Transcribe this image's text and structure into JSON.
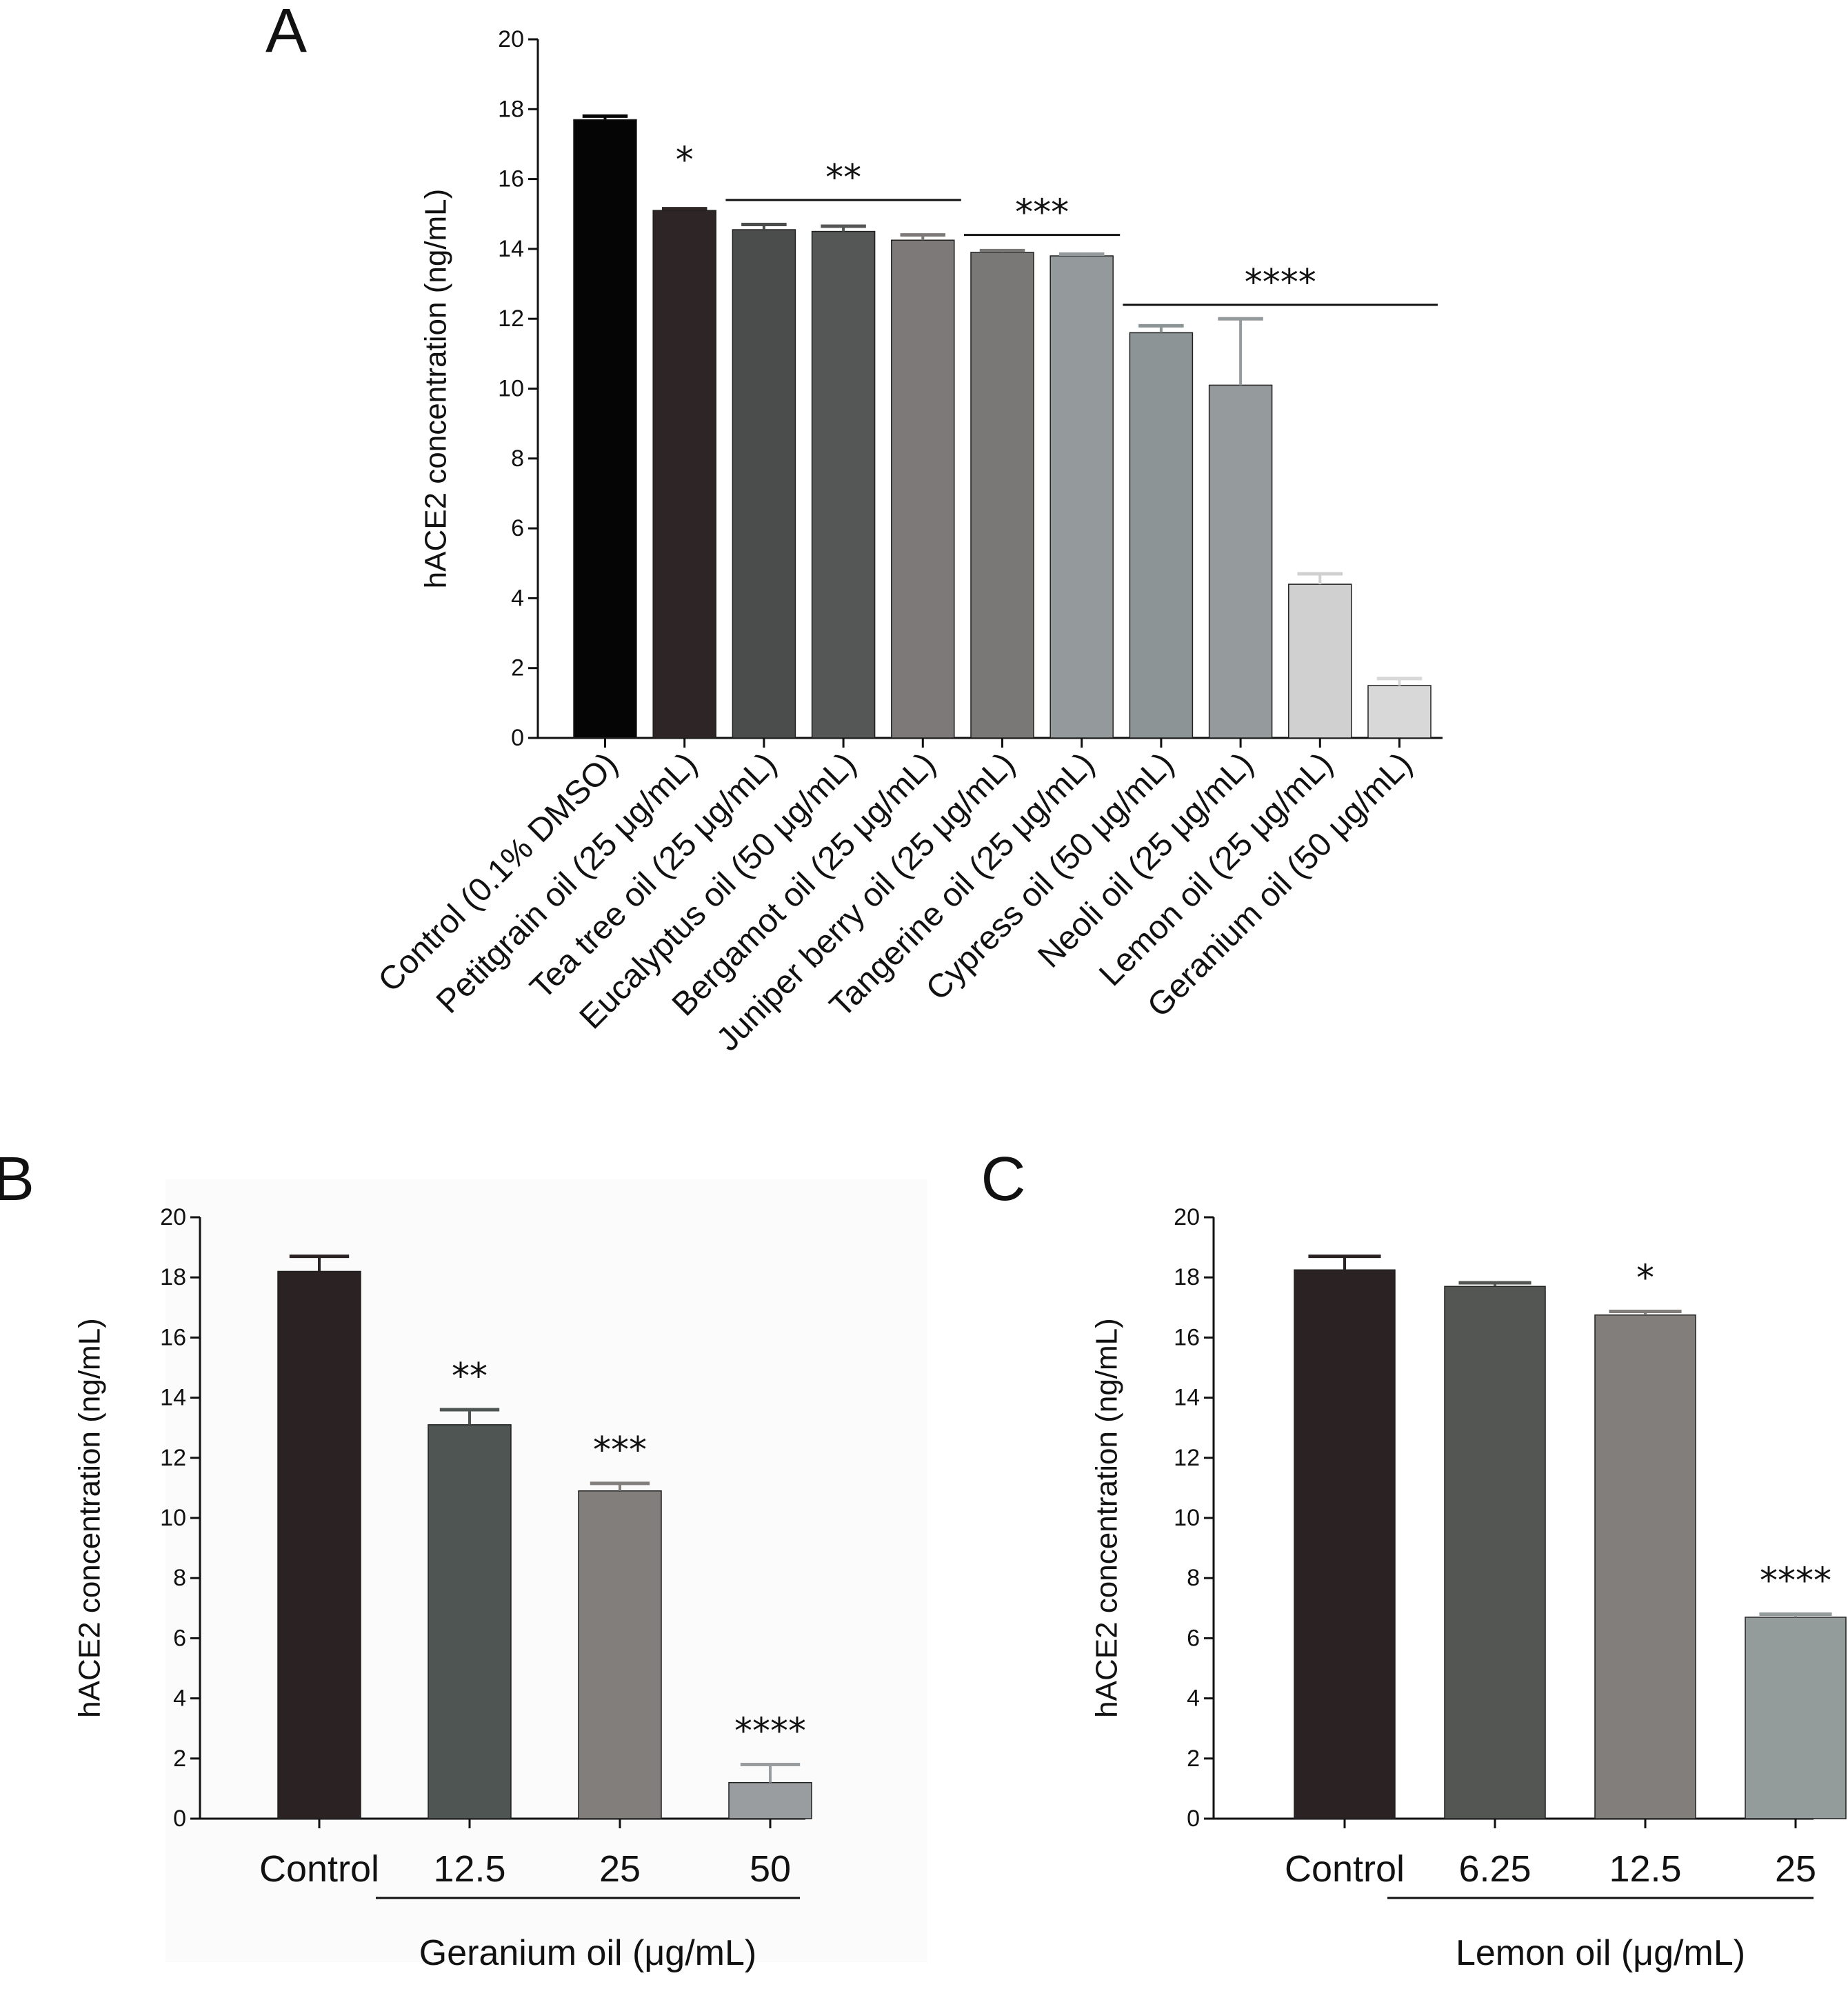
{
  "chart_data": [
    {
      "panel_label": "A",
      "type": "bar",
      "ylabel": "hACE2 concentration (ng/mL)",
      "xlabel": "",
      "ylim": [
        0,
        20
      ],
      "yticks": [
        "0",
        "2",
        "4",
        "6",
        "8",
        "10",
        "12",
        "14",
        "16",
        "18",
        "20"
      ],
      "categories": [
        "Control (0.1% DMSO)",
        "Petitgrain oil (25 μg/mL)",
        "Tea tree oil (25 μg/mL)",
        "Eucalyptus oil (50 μg/mL)",
        "Bergamot oil (25 μg/mL)",
        "Juniper berry oil (25 μg/mL)",
        "Tangerine oil (25 μg/mL)",
        "Cypress oil (50 μg/mL)",
        "Neoli oil (25 μg/mL)",
        "Lemon oil (25 μg/mL)",
        "Geranium oil (50 μg/mL)"
      ],
      "values": [
        17.7,
        15.1,
        14.55,
        14.5,
        14.25,
        13.9,
        13.8,
        11.6,
        10.1,
        4.4,
        1.5
      ],
      "errors": [
        0.1,
        0.05,
        0.15,
        0.15,
        0.15,
        0.05,
        0.05,
        0.2,
        1.9,
        0.3,
        0.2
      ],
      "colors": [
        "#050505",
        "#2d2526",
        "#4b4d4c",
        "#555756",
        "#7c7978",
        "#7a7877",
        "#949a9b",
        "#8c9496",
        "#959a9c",
        "#d0d0d0",
        "#d8d8d8"
      ],
      "significance": [
        {
          "label": "*",
          "from": 1,
          "to": 1,
          "bar": false,
          "level": 15.9
        },
        {
          "label": "**",
          "from": 2,
          "to": 4,
          "bar": true,
          "level": 15.4
        },
        {
          "label": "***",
          "from": 5,
          "to": 6,
          "bar": true,
          "level": 14.4
        },
        {
          "label": "****",
          "from": 7,
          "to": 10,
          "bar": true,
          "level": 12.4
        }
      ]
    },
    {
      "panel_label": "B",
      "type": "bar",
      "ylabel": "hACE2 concentration (ng/mL)",
      "xlabel": "Geranium oil (μg/mL)",
      "ylim": [
        0,
        20
      ],
      "yticks": [
        "0",
        "2",
        "4",
        "6",
        "8",
        "10",
        "12",
        "14",
        "16",
        "18",
        "20"
      ],
      "categories": [
        "Control",
        "12.5",
        "25",
        "50"
      ],
      "values": [
        18.2,
        13.1,
        10.9,
        1.2
      ],
      "errors": [
        0.5,
        0.5,
        0.25,
        0.6
      ],
      "colors": [
        "#2b2224",
        "#4e5553",
        "#827e7c",
        "#999d9f"
      ],
      "annotations": [
        "",
        "**",
        "***",
        "****"
      ]
    },
    {
      "panel_label": "C",
      "type": "bar",
      "ylabel": "hACE2 concentration (ng/mL)",
      "xlabel": "Lemon oil (μg/mL)",
      "ylim": [
        0,
        20
      ],
      "yticks": [
        "0",
        "2",
        "4",
        "6",
        "8",
        "10",
        "12",
        "14",
        "16",
        "18",
        "20"
      ],
      "categories": [
        "Control",
        "6.25",
        "12.5",
        "25"
      ],
      "values": [
        18.25,
        17.7,
        16.75,
        6.7
      ],
      "errors": [
        0.45,
        0.12,
        0.12,
        0.1
      ],
      "colors": [
        "#2b2224",
        "#545654",
        "#817e7c",
        "#949b9b"
      ],
      "annotations": [
        "",
        "",
        "*",
        "****"
      ]
    }
  ]
}
